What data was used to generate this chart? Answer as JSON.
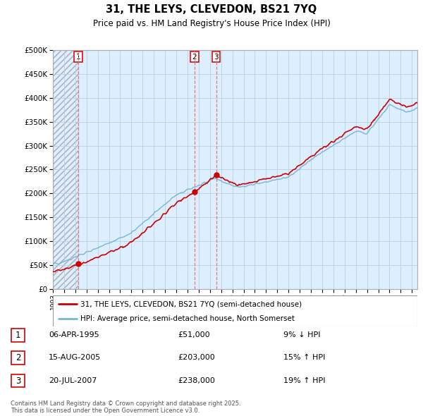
{
  "title": "31, THE LEYS, CLEVEDON, BS21 7YQ",
  "subtitle": "Price paid vs. HM Land Registry's House Price Index (HPI)",
  "ylim": [
    0,
    500000
  ],
  "yticks": [
    0,
    50000,
    100000,
    150000,
    200000,
    250000,
    300000,
    350000,
    400000,
    450000,
    500000
  ],
  "hpi_color": "#7ab4d8",
  "price_color": "#cc0000",
  "vline_color": "#e87070",
  "bg_color": "#ddeeff",
  "transactions": [
    {
      "num": 1,
      "date": "06-APR-1995",
      "price": 51000,
      "pct": "9%",
      "dir": "↓",
      "x_year": 1995.27
    },
    {
      "num": 2,
      "date": "15-AUG-2005",
      "price": 203000,
      "pct": "15%",
      "dir": "↑",
      "x_year": 2005.62
    },
    {
      "num": 3,
      "date": "20-JUL-2007",
      "price": 238000,
      "pct": "19%",
      "dir": "↑",
      "x_year": 2007.55
    }
  ],
  "legend_label_price": "31, THE LEYS, CLEVEDON, BS21 7YQ (semi-detached house)",
  "legend_label_hpi": "HPI: Average price, semi-detached house, North Somerset",
  "footer": "Contains HM Land Registry data © Crown copyright and database right 2025.\nThis data is licensed under the Open Government Licence v3.0.",
  "xmin": 1993.0,
  "xmax": 2025.5
}
